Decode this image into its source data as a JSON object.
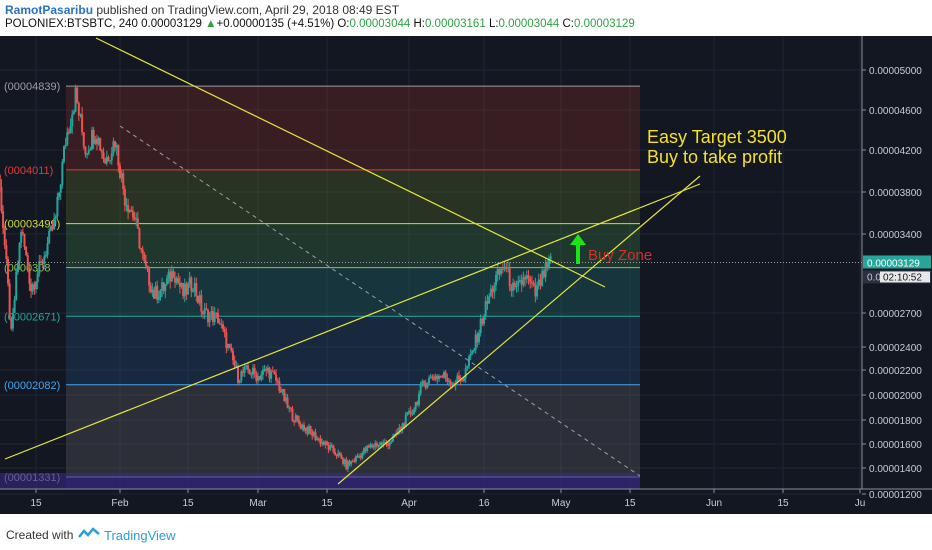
{
  "header": {
    "author": "RamotPasaribu",
    "published_text": "published on TradingView.com, April 29, 2018 08:49 EST",
    "symbol": "POLONIEX:BTSBTC, 240",
    "last": "0.00003129",
    "arrow": "▲",
    "change": "+0.00000135 (+4.51%)",
    "o_label": "O:",
    "o_value": "0.00003044",
    "h_label": "H:",
    "h_value": "0.00003161",
    "l_label": "L:",
    "l_value": "0.00003044",
    "c_label": "C:",
    "c_value": "0.00003129"
  },
  "footer": {
    "created_with": "Created with",
    "brand": "TradingView"
  },
  "colors": {
    "background": "#131722",
    "trendline": "#e4e43a",
    "up": "#26a69a",
    "down": "#ef5350",
    "arrow": "#19e619",
    "buy_zone_text": "#d32f2f",
    "annotation": "#f5e12b"
  },
  "chart_data": {
    "type": "candlestick",
    "y_axis_labels": [
      "0.00005000",
      "0.00004600",
      "0.00004200",
      "0.00003800",
      "0.00003400",
      "0.00002700",
      "0.00002400",
      "0.00002200",
      "0.00002000",
      "0.00001800",
      "0.00001600",
      "0.00001400",
      "0.00001200"
    ],
    "y_axis_ticks": [
      5e-05,
      4.6e-05,
      4.2e-05,
      3.8e-05,
      3.4e-05,
      2.7e-05,
      2.4e-05,
      2.2e-05,
      2e-05,
      1.8e-05,
      1.6e-05,
      1.4e-05,
      1.2e-05
    ],
    "price_label": "0.00003129",
    "price_value": 3.129e-05,
    "countdown": "02:10:52",
    "price_tag_partial": "0.0",
    "x_axis_labels": [
      "15",
      "Feb",
      "15",
      "Mar",
      "15",
      "Apr",
      "16",
      "May",
      "15",
      "Jun",
      "15",
      "Ju"
    ],
    "x_axis_positions": [
      "2018-01-15",
      "2018-02-01",
      "2018-02-15",
      "2018-03-01",
      "2018-03-15",
      "2018-04-01",
      "2018-04-16",
      "2018-05-01",
      "2018-05-15",
      "2018-06-01",
      "2018-06-15",
      "2018-07-01"
    ],
    "fib_levels": [
      {
        "label": "00004839)",
        "value": 4.839e-05
      },
      {
        "label": "0004011)",
        "value": 4.011e-05
      },
      {
        "label": "00003499)",
        "value": 3.499e-05
      },
      {
        "label": "0000308",
        "value": 3.08e-05
      },
      {
        "label": "00002671)",
        "value": 2.671e-05
      },
      {
        "label": "00002082)",
        "value": 2.082e-05
      },
      {
        "label": "00001331)",
        "value": 1.331e-05
      }
    ],
    "annotation_line1": "Easy Target 3500",
    "annotation_line2": "Buy to take profit",
    "buy_zone_label": "Buy Zone",
    "price_path": [
      [
        "2018-01-06",
        4.55e-05
      ],
      [
        "2018-01-08",
        3.68e-05
      ],
      [
        "2018-01-10",
        2.5e-05
      ],
      [
        "2018-01-12",
        3.45e-05
      ],
      [
        "2018-01-14",
        2.9e-05
      ],
      [
        "2018-01-16",
        3.1e-05
      ],
      [
        "2018-01-19",
        3.55e-05
      ],
      [
        "2018-01-21",
        4.3e-05
      ],
      [
        "2018-01-23",
        4.75e-05
      ],
      [
        "2018-01-25",
        4.2e-05
      ],
      [
        "2018-01-27",
        4.4e-05
      ],
      [
        "2018-01-29",
        4.1e-05
      ],
      [
        "2018-01-31",
        4.3e-05
      ],
      [
        "2018-02-02",
        3.75e-05
      ],
      [
        "2018-02-04",
        3.55e-05
      ],
      [
        "2018-02-06",
        3.1e-05
      ],
      [
        "2018-02-08",
        2.85e-05
      ],
      [
        "2018-02-10",
        2.9e-05
      ],
      [
        "2018-02-12",
        3.05e-05
      ],
      [
        "2018-02-14",
        2.85e-05
      ],
      [
        "2018-02-16",
        2.95e-05
      ],
      [
        "2018-02-18",
        2.7e-05
      ],
      [
        "2018-02-21",
        2.65e-05
      ],
      [
        "2018-02-23",
        2.4e-05
      ],
      [
        "2018-02-25",
        2.15e-05
      ],
      [
        "2018-02-27",
        2.2e-05
      ],
      [
        "2018-03-01",
        2.15e-05
      ],
      [
        "2018-03-03",
        2.2e-05
      ],
      [
        "2018-03-05",
        2.1e-05
      ],
      [
        "2018-03-07",
        1.9e-05
      ],
      [
        "2018-03-09",
        1.78e-05
      ],
      [
        "2018-03-11",
        1.72e-05
      ],
      [
        "2018-03-13",
        1.65e-05
      ],
      [
        "2018-03-15",
        1.58e-05
      ],
      [
        "2018-03-17",
        1.52e-05
      ],
      [
        "2018-03-19",
        1.42e-05
      ],
      [
        "2018-03-21",
        1.48e-05
      ],
      [
        "2018-03-23",
        1.55e-05
      ],
      [
        "2018-03-25",
        1.6e-05
      ],
      [
        "2018-03-27",
        1.6e-05
      ],
      [
        "2018-03-29",
        1.65e-05
      ],
      [
        "2018-03-31",
        1.78e-05
      ],
      [
        "2018-04-02",
        1.9e-05
      ],
      [
        "2018-04-04",
        2.1e-05
      ],
      [
        "2018-04-06",
        2.15e-05
      ],
      [
        "2018-04-08",
        2.15e-05
      ],
      [
        "2018-04-10",
        2.1e-05
      ],
      [
        "2018-04-12",
        2.15e-05
      ],
      [
        "2018-04-14",
        2.4e-05
      ],
      [
        "2018-04-16",
        2.7e-05
      ],
      [
        "2018-04-18",
        2.95e-05
      ],
      [
        "2018-04-20",
        3.1e-05
      ],
      [
        "2018-04-22",
        2.85e-05
      ],
      [
        "2018-04-24",
        3e-05
      ],
      [
        "2018-04-26",
        2.85e-05
      ],
      [
        "2018-04-28",
        3.05e-05
      ],
      [
        "2018-04-29",
        3.13e-05
      ]
    ]
  }
}
